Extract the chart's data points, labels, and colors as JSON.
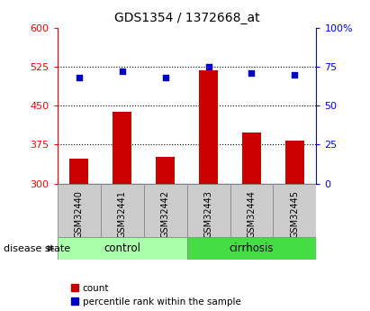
{
  "title": "GDS1354 / 1372668_at",
  "samples": [
    "GSM32440",
    "GSM32441",
    "GSM32442",
    "GSM32443",
    "GSM32444",
    "GSM32445"
  ],
  "count_values": [
    348,
    438,
    352,
    519,
    398,
    383
  ],
  "percentile_values": [
    68,
    72,
    68,
    75,
    71,
    70
  ],
  "left_ylim": [
    300,
    600
  ],
  "right_ylim": [
    0,
    100
  ],
  "left_yticks": [
    300,
    375,
    450,
    525,
    600
  ],
  "right_yticks": [
    0,
    25,
    50,
    75,
    100
  ],
  "right_yticklabels": [
    "0",
    "25",
    "50",
    "75",
    "100%"
  ],
  "bar_color": "#cc0000",
  "dot_color": "#0000cc",
  "control_color": "#aaffaa",
  "cirrhosis_color": "#44dd44",
  "label_bg": "#cccccc",
  "disease_label": "disease state",
  "group_labels": [
    "control",
    "cirrhosis"
  ],
  "legend_count": "count",
  "legend_pct": "percentile rank within the sample"
}
